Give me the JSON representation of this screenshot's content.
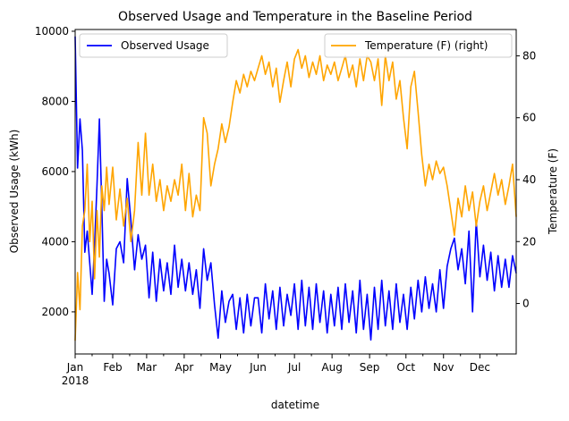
{
  "chart_data": {
    "type": "line",
    "title": "Observed Usage and Temperature in the Baseline Period",
    "xlabel": "datetime",
    "ylabel_left": "Observed Usage (kWh)",
    "ylabel_right": "Temperature (F)",
    "x_range": [
      "2018-01-01",
      "2018-12-31"
    ],
    "x_ticks": [
      {
        "date": "2018-01-01",
        "label": "Jan",
        "sublabel": "2018"
      },
      {
        "date": "2018-02-01",
        "label": "Feb"
      },
      {
        "date": "2018-03-01",
        "label": "Mar"
      },
      {
        "date": "2018-04-01",
        "label": "Apr"
      },
      {
        "date": "2018-05-01",
        "label": "May"
      },
      {
        "date": "2018-06-01",
        "label": "Jun"
      },
      {
        "date": "2018-07-01",
        "label": "Jul"
      },
      {
        "date": "2018-08-01",
        "label": "Aug"
      },
      {
        "date": "2018-09-01",
        "label": "Sep"
      },
      {
        "date": "2018-10-01",
        "label": "Oct"
      },
      {
        "date": "2018-11-01",
        "label": "Nov"
      },
      {
        "date": "2018-12-01",
        "label": "Dec"
      }
    ],
    "y_left": {
      "min": 800,
      "max": 10050,
      "ticks": [
        2000,
        4000,
        6000,
        8000,
        10000
      ]
    },
    "y_right": {
      "min": -16.3,
      "max": 88.5,
      "ticks": [
        0,
        20,
        40,
        60,
        80
      ]
    },
    "legend_left": {
      "placement": "upper-left"
    },
    "legend_right": {
      "placement": "upper-right"
    },
    "series": [
      {
        "name": "Observed Usage",
        "axis": "left",
        "color": "#0000ff",
        "points": [
          [
            "2018-01-01",
            9850
          ],
          [
            "2018-01-03",
            6100
          ],
          [
            "2018-01-05",
            7500
          ],
          [
            "2018-01-07",
            6600
          ],
          [
            "2018-01-09",
            3700
          ],
          [
            "2018-01-11",
            4300
          ],
          [
            "2018-01-13",
            3400
          ],
          [
            "2018-01-15",
            2500
          ],
          [
            "2018-01-17",
            3900
          ],
          [
            "2018-01-19",
            5600
          ],
          [
            "2018-01-21",
            7500
          ],
          [
            "2018-01-23",
            5000
          ],
          [
            "2018-01-25",
            2300
          ],
          [
            "2018-01-27",
            3500
          ],
          [
            "2018-01-29",
            3100
          ],
          [
            "2018-02-01",
            2200
          ],
          [
            "2018-02-04",
            3800
          ],
          [
            "2018-02-07",
            4000
          ],
          [
            "2018-02-10",
            3400
          ],
          [
            "2018-02-13",
            5800
          ],
          [
            "2018-02-16",
            4600
          ],
          [
            "2018-02-19",
            3200
          ],
          [
            "2018-02-22",
            4200
          ],
          [
            "2018-02-25",
            3500
          ],
          [
            "2018-02-28",
            3900
          ],
          [
            "2018-03-03",
            2400
          ],
          [
            "2018-03-06",
            3700
          ],
          [
            "2018-03-09",
            2300
          ],
          [
            "2018-03-12",
            3500
          ],
          [
            "2018-03-15",
            2600
          ],
          [
            "2018-03-18",
            3400
          ],
          [
            "2018-03-21",
            2500
          ],
          [
            "2018-03-24",
            3900
          ],
          [
            "2018-03-27",
            2700
          ],
          [
            "2018-03-30",
            3500
          ],
          [
            "2018-04-02",
            2600
          ],
          [
            "2018-04-05",
            3400
          ],
          [
            "2018-04-08",
            2500
          ],
          [
            "2018-04-11",
            3200
          ],
          [
            "2018-04-14",
            2100
          ],
          [
            "2018-04-17",
            3800
          ],
          [
            "2018-04-20",
            2900
          ],
          [
            "2018-04-23",
            3400
          ],
          [
            "2018-04-26",
            2200
          ],
          [
            "2018-04-29",
            1250
          ],
          [
            "2018-05-02",
            2600
          ],
          [
            "2018-05-05",
            1700
          ],
          [
            "2018-05-08",
            2300
          ],
          [
            "2018-05-11",
            2500
          ],
          [
            "2018-05-14",
            1500
          ],
          [
            "2018-05-17",
            2400
          ],
          [
            "2018-05-20",
            1400
          ],
          [
            "2018-05-23",
            2500
          ],
          [
            "2018-05-26",
            1600
          ],
          [
            "2018-05-29",
            2400
          ],
          [
            "2018-06-01",
            2400
          ],
          [
            "2018-06-04",
            1400
          ],
          [
            "2018-06-07",
            2800
          ],
          [
            "2018-06-10",
            1800
          ],
          [
            "2018-06-13",
            2600
          ],
          [
            "2018-06-16",
            1500
          ],
          [
            "2018-06-19",
            2700
          ],
          [
            "2018-06-22",
            1600
          ],
          [
            "2018-06-25",
            2500
          ],
          [
            "2018-06-28",
            1900
          ],
          [
            "2018-07-01",
            2800
          ],
          [
            "2018-07-04",
            1500
          ],
          [
            "2018-07-07",
            2900
          ],
          [
            "2018-07-10",
            1600
          ],
          [
            "2018-07-13",
            2700
          ],
          [
            "2018-07-16",
            1500
          ],
          [
            "2018-07-19",
            2800
          ],
          [
            "2018-07-22",
            1700
          ],
          [
            "2018-07-25",
            2600
          ],
          [
            "2018-07-28",
            1400
          ],
          [
            "2018-07-31",
            2500
          ],
          [
            "2018-08-03",
            1600
          ],
          [
            "2018-08-06",
            2700
          ],
          [
            "2018-08-09",
            1500
          ],
          [
            "2018-08-12",
            2800
          ],
          [
            "2018-08-15",
            1700
          ],
          [
            "2018-08-18",
            2600
          ],
          [
            "2018-08-21",
            1400
          ],
          [
            "2018-08-24",
            2900
          ],
          [
            "2018-08-27",
            1500
          ],
          [
            "2018-08-30",
            2500
          ],
          [
            "2018-09-02",
            1200
          ],
          [
            "2018-09-05",
            2700
          ],
          [
            "2018-09-08",
            1500
          ],
          [
            "2018-09-11",
            2900
          ],
          [
            "2018-09-14",
            1600
          ],
          [
            "2018-09-17",
            2600
          ],
          [
            "2018-09-20",
            1500
          ],
          [
            "2018-09-23",
            2800
          ],
          [
            "2018-09-26",
            1700
          ],
          [
            "2018-09-29",
            2500
          ],
          [
            "2018-10-02",
            1500
          ],
          [
            "2018-10-05",
            2700
          ],
          [
            "2018-10-08",
            1800
          ],
          [
            "2018-10-11",
            2900
          ],
          [
            "2018-10-14",
            2000
          ],
          [
            "2018-10-17",
            3000
          ],
          [
            "2018-10-20",
            2100
          ],
          [
            "2018-10-23",
            2800
          ],
          [
            "2018-10-26",
            2000
          ],
          [
            "2018-10-29",
            3200
          ],
          [
            "2018-11-01",
            2100
          ],
          [
            "2018-11-04",
            3300
          ],
          [
            "2018-11-07",
            3800
          ],
          [
            "2018-11-10",
            4100
          ],
          [
            "2018-11-13",
            3200
          ],
          [
            "2018-11-16",
            3800
          ],
          [
            "2018-11-19",
            2800
          ],
          [
            "2018-11-22",
            4300
          ],
          [
            "2018-11-25",
            2000
          ],
          [
            "2018-11-28",
            4600
          ],
          [
            "2018-12-01",
            3000
          ],
          [
            "2018-12-04",
            3900
          ],
          [
            "2018-12-07",
            2900
          ],
          [
            "2018-12-10",
            3700
          ],
          [
            "2018-12-13",
            2600
          ],
          [
            "2018-12-16",
            3600
          ],
          [
            "2018-12-19",
            2700
          ],
          [
            "2018-12-22",
            3500
          ],
          [
            "2018-12-25",
            2700
          ],
          [
            "2018-12-28",
            3600
          ],
          [
            "2018-12-31",
            3100
          ]
        ]
      },
      {
        "name": "Temperature (F) (right)",
        "axis": "right",
        "color": "#ffa500",
        "points": [
          [
            "2018-01-01",
            -12
          ],
          [
            "2018-01-03",
            10
          ],
          [
            "2018-01-05",
            -2
          ],
          [
            "2018-01-07",
            25
          ],
          [
            "2018-01-09",
            30
          ],
          [
            "2018-01-11",
            45
          ],
          [
            "2018-01-13",
            20
          ],
          [
            "2018-01-15",
            33
          ],
          [
            "2018-01-17",
            8
          ],
          [
            "2018-01-19",
            30
          ],
          [
            "2018-01-21",
            15
          ],
          [
            "2018-01-23",
            38
          ],
          [
            "2018-01-25",
            30
          ],
          [
            "2018-01-27",
            44
          ],
          [
            "2018-01-29",
            32
          ],
          [
            "2018-02-01",
            44
          ],
          [
            "2018-02-04",
            27
          ],
          [
            "2018-02-07",
            37
          ],
          [
            "2018-02-10",
            25
          ],
          [
            "2018-02-13",
            34
          ],
          [
            "2018-02-16",
            20
          ],
          [
            "2018-02-19",
            30
          ],
          [
            "2018-02-22",
            52
          ],
          [
            "2018-02-25",
            35
          ],
          [
            "2018-02-28",
            55
          ],
          [
            "2018-03-03",
            35
          ],
          [
            "2018-03-06",
            45
          ],
          [
            "2018-03-09",
            33
          ],
          [
            "2018-03-12",
            40
          ],
          [
            "2018-03-15",
            30
          ],
          [
            "2018-03-18",
            38
          ],
          [
            "2018-03-21",
            33
          ],
          [
            "2018-03-24",
            40
          ],
          [
            "2018-03-27",
            35
          ],
          [
            "2018-03-30",
            45
          ],
          [
            "2018-04-02",
            30
          ],
          [
            "2018-04-05",
            42
          ],
          [
            "2018-04-08",
            28
          ],
          [
            "2018-04-11",
            35
          ],
          [
            "2018-04-14",
            30
          ],
          [
            "2018-04-17",
            60
          ],
          [
            "2018-04-20",
            55
          ],
          [
            "2018-04-23",
            38
          ],
          [
            "2018-04-26",
            45
          ],
          [
            "2018-04-29",
            50
          ],
          [
            "2018-05-02",
            58
          ],
          [
            "2018-05-05",
            52
          ],
          [
            "2018-05-08",
            57
          ],
          [
            "2018-05-11",
            65
          ],
          [
            "2018-05-14",
            72
          ],
          [
            "2018-05-17",
            68
          ],
          [
            "2018-05-20",
            74
          ],
          [
            "2018-05-23",
            70
          ],
          [
            "2018-05-26",
            75
          ],
          [
            "2018-05-29",
            72
          ],
          [
            "2018-06-01",
            76
          ],
          [
            "2018-06-04",
            80
          ],
          [
            "2018-06-07",
            74
          ],
          [
            "2018-06-10",
            78
          ],
          [
            "2018-06-13",
            70
          ],
          [
            "2018-06-16",
            76
          ],
          [
            "2018-06-19",
            65
          ],
          [
            "2018-06-22",
            72
          ],
          [
            "2018-06-25",
            78
          ],
          [
            "2018-06-28",
            70
          ],
          [
            "2018-07-01",
            79
          ],
          [
            "2018-07-04",
            82
          ],
          [
            "2018-07-07",
            76
          ],
          [
            "2018-07-10",
            80
          ],
          [
            "2018-07-13",
            73
          ],
          [
            "2018-07-16",
            78
          ],
          [
            "2018-07-19",
            74
          ],
          [
            "2018-07-22",
            80
          ],
          [
            "2018-07-25",
            72
          ],
          [
            "2018-07-28",
            77
          ],
          [
            "2018-07-31",
            74
          ],
          [
            "2018-08-03",
            78
          ],
          [
            "2018-08-06",
            72
          ],
          [
            "2018-08-09",
            76
          ],
          [
            "2018-08-12",
            80
          ],
          [
            "2018-08-15",
            73
          ],
          [
            "2018-08-18",
            77
          ],
          [
            "2018-08-21",
            70
          ],
          [
            "2018-08-24",
            79
          ],
          [
            "2018-08-27",
            72
          ],
          [
            "2018-08-30",
            80
          ],
          [
            "2018-09-02",
            78
          ],
          [
            "2018-09-05",
            72
          ],
          [
            "2018-09-08",
            79
          ],
          [
            "2018-09-11",
            64
          ],
          [
            "2018-09-14",
            80
          ],
          [
            "2018-09-17",
            72
          ],
          [
            "2018-09-20",
            78
          ],
          [
            "2018-09-23",
            66
          ],
          [
            "2018-09-26",
            72
          ],
          [
            "2018-09-29",
            60
          ],
          [
            "2018-10-02",
            50
          ],
          [
            "2018-10-05",
            70
          ],
          [
            "2018-10-08",
            75
          ],
          [
            "2018-10-11",
            62
          ],
          [
            "2018-10-14",
            48
          ],
          [
            "2018-10-17",
            38
          ],
          [
            "2018-10-20",
            45
          ],
          [
            "2018-10-23",
            40
          ],
          [
            "2018-10-26",
            46
          ],
          [
            "2018-10-29",
            42
          ],
          [
            "2018-11-01",
            44
          ],
          [
            "2018-11-04",
            38
          ],
          [
            "2018-11-07",
            30
          ],
          [
            "2018-11-10",
            22
          ],
          [
            "2018-11-13",
            34
          ],
          [
            "2018-11-16",
            28
          ],
          [
            "2018-11-19",
            38
          ],
          [
            "2018-11-22",
            30
          ],
          [
            "2018-11-25",
            36
          ],
          [
            "2018-11-28",
            25
          ],
          [
            "2018-12-01",
            33
          ],
          [
            "2018-12-04",
            38
          ],
          [
            "2018-12-07",
            30
          ],
          [
            "2018-12-10",
            36
          ],
          [
            "2018-12-13",
            42
          ],
          [
            "2018-12-16",
            35
          ],
          [
            "2018-12-19",
            40
          ],
          [
            "2018-12-22",
            32
          ],
          [
            "2018-12-25",
            38
          ],
          [
            "2018-12-28",
            45
          ],
          [
            "2018-12-31",
            28
          ]
        ]
      }
    ]
  }
}
